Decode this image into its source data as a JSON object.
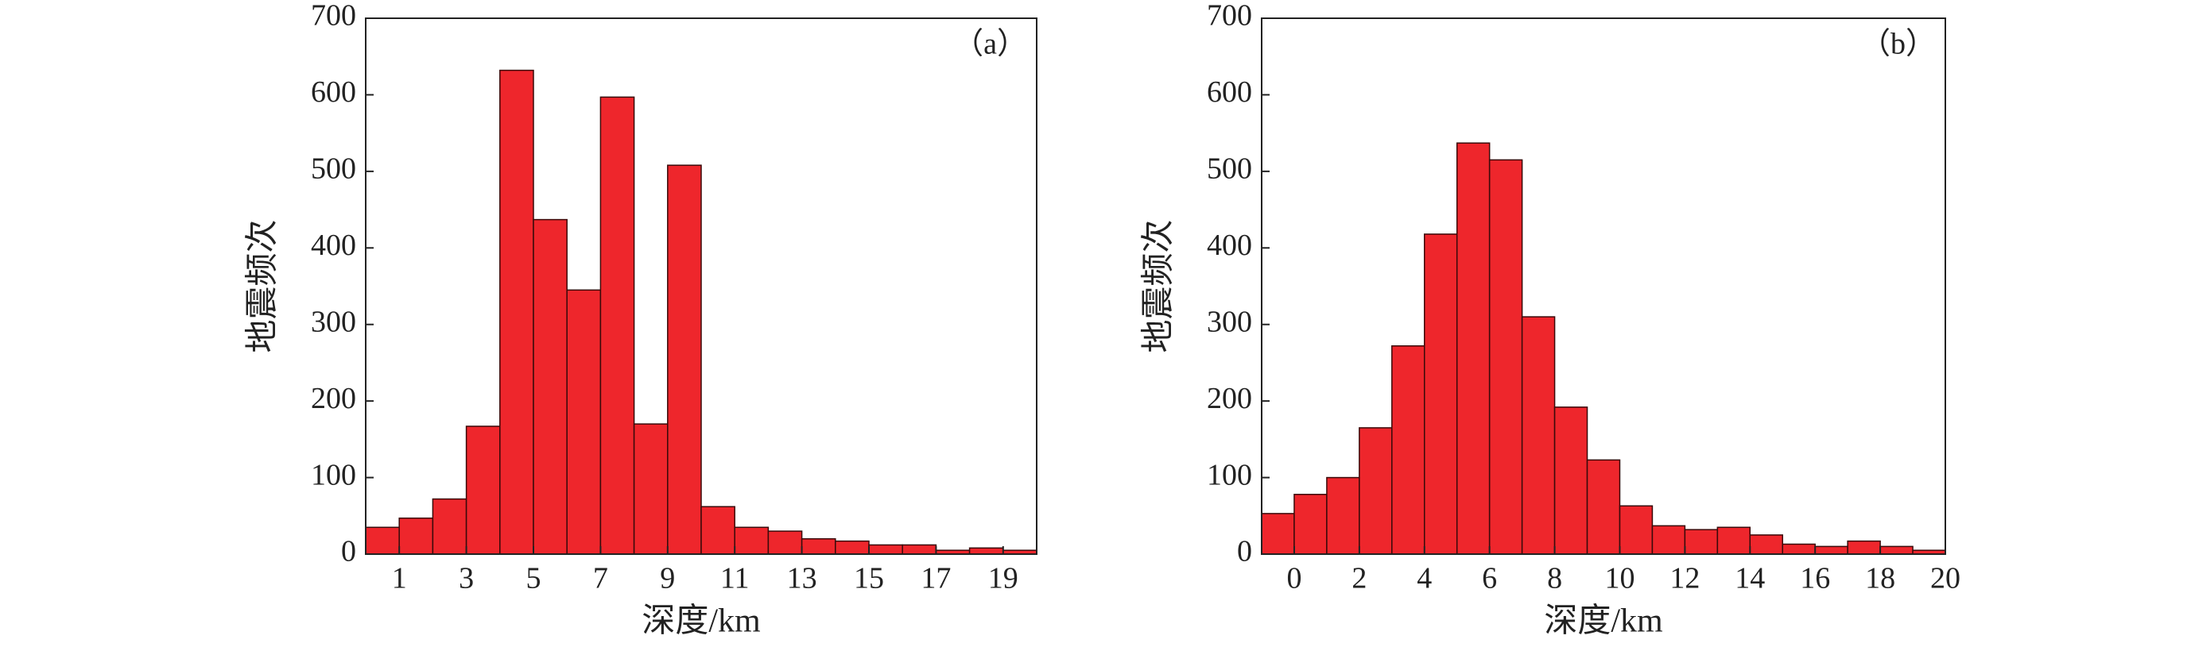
{
  "chart_data": [
    {
      "type": "histogram",
      "annotation": "（a）",
      "xlabel": "深度/km",
      "ylabel": "地震频次",
      "bins": [
        0,
        1,
        2,
        3,
        4,
        5,
        6,
        7,
        8,
        9,
        10,
        11,
        12,
        13,
        14,
        15,
        16,
        17,
        18,
        19,
        20
      ],
      "counts": [
        35,
        47,
        72,
        167,
        632,
        437,
        345,
        597,
        170,
        508,
        62,
        35,
        30,
        20,
        17,
        12,
        12,
        5,
        8,
        5
      ],
      "color": "#ee262c",
      "xlim": [
        0,
        20
      ],
      "xticks": [
        1,
        3,
        5,
        7,
        9,
        11,
        13,
        15,
        17,
        19
      ],
      "ylim": [
        0,
        700
      ],
      "yticks": [
        0,
        100,
        200,
        300,
        400,
        500,
        600,
        700
      ],
      "grid": false
    },
    {
      "type": "histogram",
      "annotation": "（b）",
      "xlabel": "深度/km",
      "ylabel": "地震频次",
      "bins": [
        -1,
        0,
        1,
        2,
        3,
        4,
        5,
        6,
        7,
        8,
        9,
        10,
        11,
        12,
        13,
        14,
        15,
        16,
        17,
        18,
        19,
        20
      ],
      "counts": [
        53,
        78,
        100,
        165,
        272,
        418,
        537,
        515,
        310,
        192,
        123,
        63,
        37,
        32,
        35,
        25,
        13,
        10,
        17,
        10,
        5
      ],
      "color": "#ee262c",
      "xlim": [
        -1,
        20
      ],
      "xticks": [
        0,
        2,
        4,
        6,
        8,
        10,
        12,
        14,
        16,
        18,
        20
      ],
      "ylim": [
        0,
        700
      ],
      "yticks": [
        0,
        100,
        200,
        300,
        400,
        500,
        600,
        700
      ],
      "grid": false
    }
  ]
}
